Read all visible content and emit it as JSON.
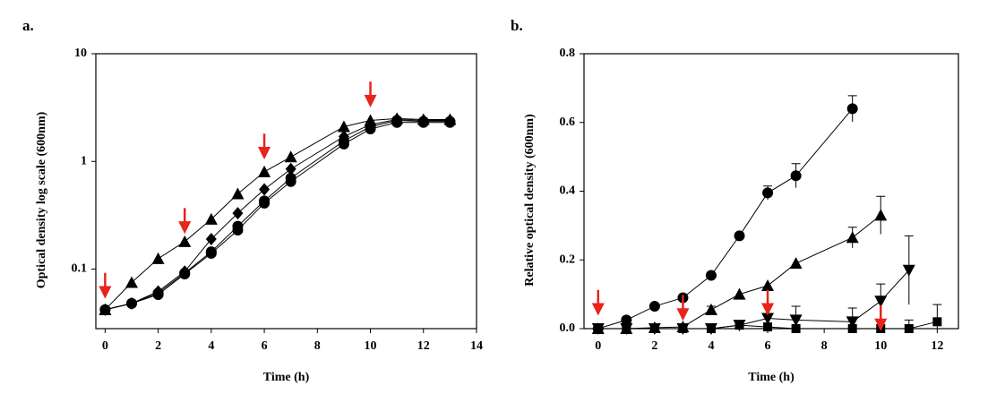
{
  "chart_data": [
    {
      "type": "line",
      "panel_label": "a.",
      "xlabel": "Time (h)",
      "ylabel": "Optical density log scale (600nm)",
      "log_scale": true,
      "xlim": [
        -0.35,
        14
      ],
      "ylim": [
        0.028,
        10
      ],
      "xticks": [
        0,
        2,
        4,
        6,
        8,
        10,
        12,
        14
      ],
      "yticks": [
        0.1,
        1,
        10
      ],
      "arrow_color": "#e8241c",
      "arrows": [
        {
          "x": 0,
          "y": 0.056
        },
        {
          "x": 3,
          "y": 0.224
        },
        {
          "x": 6,
          "y": 1.1
        },
        {
          "x": 10,
          "y": 3.35
        }
      ],
      "series": [
        {
          "marker": "triangle",
          "color": "#000000",
          "x": [
            0,
            1,
            2,
            3,
            4,
            5,
            6,
            7,
            9,
            10,
            11,
            12,
            13
          ],
          "values": [
            0.042,
            0.075,
            0.125,
            0.18,
            0.29,
            0.5,
            0.8,
            1.1,
            2.1,
            2.4,
            2.5,
            2.45,
            2.45
          ]
        },
        {
          "marker": "diamond",
          "color": "#000000",
          "x": [
            0,
            1,
            2,
            3,
            4,
            5,
            6,
            7,
            9,
            10,
            11,
            12,
            13
          ],
          "values": [
            0.042,
            0.048,
            0.062,
            0.095,
            0.19,
            0.33,
            0.55,
            0.85,
            1.7,
            2.2,
            2.45,
            2.4,
            2.4
          ]
        },
        {
          "marker": "circle",
          "color": "#000000",
          "x": [
            0,
            1,
            2,
            3,
            4,
            5,
            6,
            7,
            9,
            10,
            11,
            12,
            13
          ],
          "values": [
            0.042,
            0.048,
            0.06,
            0.092,
            0.145,
            0.25,
            0.43,
            0.7,
            1.55,
            2.1,
            2.4,
            2.35,
            2.35
          ]
        },
        {
          "marker": "circle",
          "color": "#000000",
          "x": [
            0,
            1,
            2,
            3,
            4,
            5,
            6,
            7,
            9,
            10,
            11,
            12,
            13
          ],
          "values": [
            0.042,
            0.048,
            0.058,
            0.09,
            0.14,
            0.23,
            0.41,
            0.65,
            1.45,
            2.0,
            2.3,
            2.3,
            2.3
          ]
        }
      ]
    },
    {
      "type": "line",
      "panel_label": "b.",
      "xlabel": "Time (h)",
      "ylabel": "Relative optical density (600nm)",
      "log_scale": false,
      "xlim": [
        -0.5,
        12.75
      ],
      "ylim": [
        0,
        0.8
      ],
      "xticks": [
        0,
        2,
        4,
        6,
        8,
        10,
        12
      ],
      "yticks": [
        {
          "value": 0,
          "label": "0.0"
        },
        0.2,
        0.4,
        0.6,
        0.8
      ],
      "arrow_color": "#e8241c",
      "arrows": [
        {
          "x": 0,
          "y": 0.045
        },
        {
          "x": 3,
          "y": 0.03
        },
        {
          "x": 6,
          "y": 0.045
        },
        {
          "x": 10,
          "y": 0.0
        }
      ],
      "series": [
        {
          "marker": "circle",
          "color": "#000000",
          "x": [
            0,
            1,
            2,
            3,
            4,
            5,
            6,
            7,
            9
          ],
          "values": [
            0,
            0.025,
            0.065,
            0.09,
            0.155,
            0.27,
            0.395,
            0.445,
            0.64
          ],
          "errors": [
            null,
            null,
            null,
            null,
            null,
            null,
            0.02,
            0.035,
            0.038
          ]
        },
        {
          "marker": "triangle",
          "color": "#000000",
          "x": [
            0,
            1,
            2,
            3,
            4,
            5,
            6,
            7,
            9,
            10
          ],
          "values": [
            0,
            0,
            0.003,
            0.005,
            0.055,
            0.1,
            0.125,
            0.19,
            0.265,
            0.33
          ],
          "errors": [
            null,
            null,
            null,
            null,
            0.01,
            null,
            null,
            null,
            0.03,
            0.055
          ]
        },
        {
          "marker": "triangle-down",
          "color": "#000000",
          "x": [
            0,
            1,
            2,
            3,
            4,
            5,
            6,
            7,
            9,
            10,
            11
          ],
          "values": [
            0,
            0,
            0,
            0,
            0,
            0.01,
            0.03,
            0.025,
            0.02,
            0.08,
            0.17
          ],
          "errors": [
            null,
            null,
            null,
            null,
            null,
            null,
            0.01,
            0.04,
            0.04,
            0.05,
            0.1
          ]
        },
        {
          "marker": "square",
          "color": "#000000",
          "x": [
            0,
            1,
            2,
            3,
            4,
            5,
            6,
            7,
            9,
            10,
            11,
            12
          ],
          "values": [
            0,
            0,
            0,
            0,
            0,
            0.01,
            0.005,
            0,
            0,
            0,
            0,
            0.02
          ],
          "errors": [
            null,
            null,
            null,
            null,
            null,
            null,
            null,
            null,
            null,
            null,
            0.025,
            0.05
          ]
        }
      ]
    }
  ]
}
